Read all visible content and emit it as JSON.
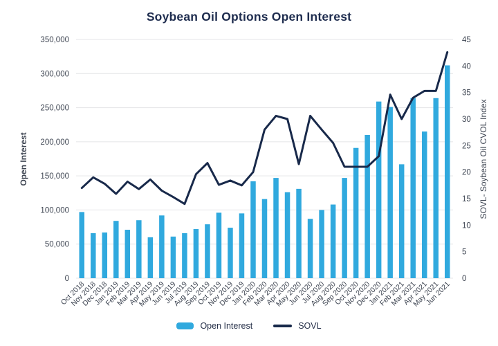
{
  "title": "Soybean Oil Options Open Interest",
  "colors": {
    "bar": "#30a9de",
    "line": "#18294a",
    "title": "#1f2d4f",
    "tick": "#3d4451",
    "grid": "#e4e5e7"
  },
  "legend": [
    {
      "label": "Open Interest",
      "swatch": "bar-swatch"
    },
    {
      "label": "SOVL",
      "swatch": "line-swatch"
    }
  ],
  "chart_data": {
    "type": "bar",
    "subtype": "combo-bar-line",
    "title": "Soybean Oil Options Open Interest",
    "grid": "horizontal",
    "legend_position": "bottom",
    "categories": [
      "Oct 2018",
      "Nov 2018",
      "Dec 2018",
      "Jan 2019",
      "Feb 2019",
      "Mar 2019",
      "Apr 2019",
      "May 2019",
      "Jun 2019",
      "Jul 2019",
      "Aug 2019",
      "Sep 2019",
      "Oct 2019",
      "Nov 2019",
      "Dec 2019",
      "Jan 2020",
      "Feb 2020",
      "Mar 2020",
      "Apr 2020",
      "May 2020",
      "Jun 2020",
      "Jul 2020",
      "Aug 2020",
      "Sep 2020",
      "Oct 2020",
      "Nov 2020",
      "Dec 2020",
      "Jan 2021",
      "Feb 2021",
      "Mar 2021",
      "Apr 2021",
      "May 2021",
      "Jun 2021"
    ],
    "series": [
      {
        "name": "Open Interest",
        "type": "bar",
        "axis": "left",
        "color": "#30a9de",
        "values": [
          97000,
          66000,
          67000,
          84000,
          71000,
          85000,
          60000,
          92000,
          61000,
          66000,
          72000,
          79000,
          96000,
          74000,
          95000,
          142000,
          116000,
          147000,
          126000,
          131000,
          87000,
          100000,
          108000,
          147000,
          191000,
          210000,
          259000,
          251000,
          167000,
          264000,
          215000,
          264000,
          312000
        ]
      },
      {
        "name": "SOVL",
        "type": "line",
        "axis": "right",
        "color": "#18294a",
        "values": [
          17.0,
          19.0,
          17.8,
          15.9,
          18.2,
          16.8,
          18.6,
          16.5,
          15.3,
          14.0,
          19.6,
          21.7,
          17.6,
          18.4,
          17.5,
          20.0,
          28.0,
          30.6,
          30.0,
          21.5,
          30.6,
          28.0,
          25.5,
          21.0,
          21.0,
          21.0,
          23.0,
          34.6,
          30.0,
          34.0,
          35.3,
          35.3,
          42.6
        ]
      }
    ],
    "left_axis": {
      "label": "Open Interest",
      "min": 0,
      "max": 350000,
      "tick_step": 50000
    },
    "right_axis": {
      "label": "SOVL- Soybean Oil CVOL Index",
      "min": 0,
      "max": 45,
      "tick_step": 5
    }
  }
}
